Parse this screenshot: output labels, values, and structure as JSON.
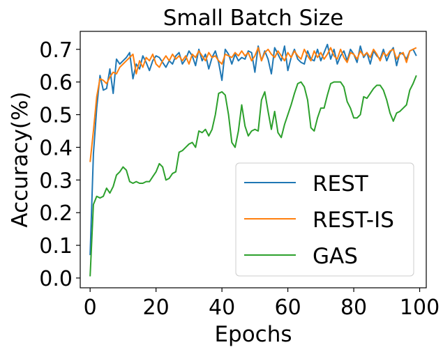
{
  "chart_data": {
    "type": "line",
    "title": "Small Batch Size",
    "xlabel": "Epochs",
    "ylabel": "Accuracy(%)",
    "xlim": [
      -3,
      102
    ],
    "ylim": [
      -0.03,
      0.755
    ],
    "xticks": [
      0,
      20,
      40,
      60,
      80,
      100
    ],
    "yticks": [
      0.0,
      0.1,
      0.2,
      0.3,
      0.4,
      0.5,
      0.6,
      0.7
    ],
    "xtick_labels": [
      "0",
      "20",
      "40",
      "60",
      "80",
      "100"
    ],
    "ytick_labels": [
      "0.0",
      "0.1",
      "0.2",
      "0.3",
      "0.4",
      "0.5",
      "0.6",
      "0.7"
    ],
    "legend_position": "lower-right",
    "series": [
      {
        "name": "REST",
        "color": "#1f77b4",
        "values": [
          0.07,
          0.38,
          0.52,
          0.62,
          0.575,
          0.58,
          0.64,
          0.565,
          0.67,
          0.655,
          0.665,
          0.675,
          0.69,
          0.61,
          0.655,
          0.64,
          0.68,
          0.66,
          0.635,
          0.665,
          0.68,
          0.675,
          0.66,
          0.645,
          0.665,
          0.655,
          0.68,
          0.69,
          0.655,
          0.67,
          0.695,
          0.68,
          0.65,
          0.7,
          0.665,
          0.685,
          0.64,
          0.675,
          0.695,
          0.66,
          0.605,
          0.7,
          0.685,
          0.655,
          0.685,
          0.665,
          0.675,
          0.67,
          0.695,
          0.69,
          0.63,
          0.71,
          0.665,
          0.695,
          0.67,
          0.625,
          0.705,
          0.685,
          0.665,
          0.71,
          0.635,
          0.675,
          0.7,
          0.67,
          0.66,
          0.655,
          0.695,
          0.67,
          0.665,
          0.7,
          0.665,
          0.69,
          0.715,
          0.67,
          0.7,
          0.655,
          0.68,
          0.695,
          0.665,
          0.7,
          0.685,
          0.66,
          0.71,
          0.675,
          0.69,
          0.655,
          0.695,
          0.68,
          0.67,
          0.7,
          0.665,
          0.69,
          0.705,
          0.65,
          0.69,
          0.685,
          0.67,
          0.695,
          0.7,
          0.68
        ]
      },
      {
        "name": "REST-IS",
        "color": "#ff7f0e",
        "values": [
          0.355,
          0.45,
          0.555,
          0.61,
          0.605,
          0.595,
          0.615,
          0.63,
          0.625,
          0.645,
          0.655,
          0.665,
          0.675,
          0.685,
          0.625,
          0.665,
          0.645,
          0.675,
          0.665,
          0.685,
          0.655,
          0.645,
          0.665,
          0.68,
          0.665,
          0.685,
          0.67,
          0.68,
          0.665,
          0.68,
          0.655,
          0.685,
          0.675,
          0.695,
          0.68,
          0.665,
          0.69,
          0.675,
          0.68,
          0.665,
          0.655,
          0.685,
          0.68,
          0.675,
          0.69,
          0.68,
          0.695,
          0.68,
          0.69,
          0.665,
          0.68,
          0.705,
          0.665,
          0.69,
          0.7,
          0.685,
          0.675,
          0.695,
          0.68,
          0.665,
          0.69,
          0.675,
          0.695,
          0.68,
          0.67,
          0.7,
          0.68,
          0.665,
          0.695,
          0.675,
          0.69,
          0.67,
          0.685,
          0.705,
          0.68,
          0.67,
          0.7,
          0.675,
          0.66,
          0.69,
          0.685,
          0.67,
          0.695,
          0.68,
          0.69,
          0.675,
          0.7,
          0.685,
          0.665,
          0.69,
          0.68,
          0.695,
          0.7,
          0.67,
          0.685,
          0.69,
          0.66,
          0.695,
          0.7,
          0.705
        ]
      },
      {
        "name": "GAS",
        "color": "#2ca02c",
        "values": [
          0.005,
          0.225,
          0.25,
          0.245,
          0.25,
          0.275,
          0.26,
          0.28,
          0.315,
          0.325,
          0.34,
          0.33,
          0.295,
          0.29,
          0.295,
          0.29,
          0.29,
          0.295,
          0.295,
          0.31,
          0.325,
          0.35,
          0.34,
          0.3,
          0.305,
          0.32,
          0.325,
          0.385,
          0.39,
          0.4,
          0.41,
          0.415,
          0.4,
          0.45,
          0.445,
          0.455,
          0.435,
          0.455,
          0.5,
          0.565,
          0.57,
          0.56,
          0.5,
          0.415,
          0.4,
          0.45,
          0.53,
          0.465,
          0.435,
          0.45,
          0.455,
          0.45,
          0.545,
          0.57,
          0.51,
          0.455,
          0.51,
          0.445,
          0.43,
          0.47,
          0.5,
          0.53,
          0.565,
          0.595,
          0.6,
          0.585,
          0.545,
          0.46,
          0.45,
          0.49,
          0.52,
          0.52,
          0.56,
          0.595,
          0.6,
          0.6,
          0.6,
          0.585,
          0.54,
          0.52,
          0.49,
          0.49,
          0.5,
          0.555,
          0.55,
          0.565,
          0.58,
          0.59,
          0.59,
          0.575,
          0.545,
          0.505,
          0.48,
          0.505,
          0.51,
          0.52,
          0.53,
          0.575,
          0.595,
          0.62
        ]
      }
    ]
  }
}
